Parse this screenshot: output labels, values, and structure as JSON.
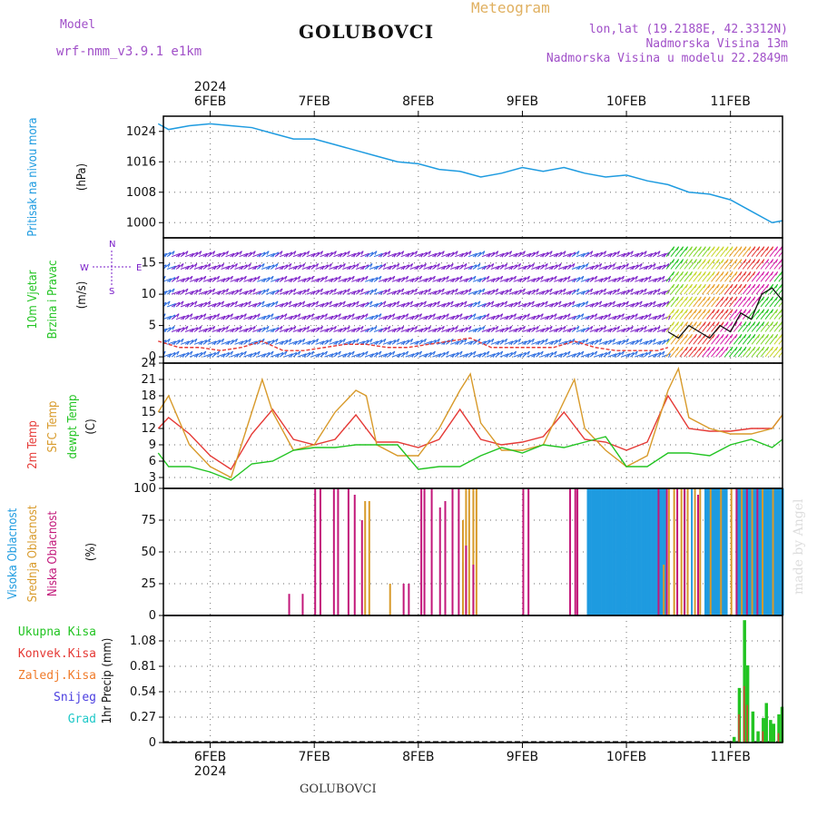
{
  "header": {
    "model_label": "Model",
    "model_name": "wrf-nmm_v3.9.1  e1km",
    "title": "GOLUBOVCI",
    "product": "Meteogram",
    "lonlat": "lon,lat (19.2188E, 42.3312N)",
    "elevation": "Nadmorska Visina 13m",
    "model_elevation": "Nadmorska Visina u modelu 22.2849m",
    "footer": "GOLUBOVCI",
    "watermark": "made by Angel",
    "year_top": "2024",
    "year_bottom": "2024"
  },
  "colors": {
    "pressure": "#1e9be0",
    "temp2m": "#e53935",
    "sfc": "#d89a2a",
    "dewpt": "#22c422",
    "high_cloud": "#1e9be0",
    "mid_cloud": "#d89a2a",
    "low_cloud": "#c2187a",
    "precip_total": "#22c422",
    "precip_conv": "#e53935",
    "precip_frz": "#f07b2a",
    "snow": "#4a3ee0",
    "hail": "#1ec8c8",
    "wind_blue": "#2a6be0",
    "wind_purple": "#7a1ec8",
    "grid": "#888888"
  },
  "chart_data": [
    {
      "type": "line",
      "panel": "pressure",
      "labels": [
        "Pritisak na nivou mora",
        "(hPa)"
      ],
      "x_days": [
        "6FEB",
        "7FEB",
        "8FEB",
        "9FEB",
        "10FEB",
        "11FEB"
      ],
      "y_ticks": [
        "1000",
        "1008",
        "1016",
        "1024"
      ],
      "ylim": [
        996,
        1028
      ],
      "series": [
        {
          "key": "pressure",
          "x": [
            5.5,
            5.6,
            5.8,
            6.0,
            6.2,
            6.4,
            6.6,
            6.8,
            7.0,
            7.2,
            7.4,
            7.6,
            7.8,
            8.0,
            8.2,
            8.4,
            8.6,
            8.8,
            9.0,
            9.2,
            9.4,
            9.6,
            9.8,
            10.0,
            10.2,
            10.4,
            10.6,
            10.8,
            11.0,
            11.2,
            11.4,
            11.5
          ],
          "y": [
            1026,
            1024.5,
            1025.5,
            1026,
            1025.5,
            1025,
            1023.5,
            1022,
            1022,
            1020.5,
            1019,
            1017.5,
            1016,
            1015.5,
            1014,
            1013.5,
            1012,
            1013,
            1014.5,
            1013.5,
            1014.5,
            1013,
            1012,
            1012.5,
            1011,
            1010,
            1008,
            1007.5,
            1006,
            1003,
            1000,
            1000.5
          ]
        }
      ]
    },
    {
      "type": "line",
      "panel": "wind",
      "labels": [
        "10m Vjetar",
        "Brzina i Pravac",
        "(m/s)"
      ],
      "compass": [
        "W",
        "E",
        "N",
        "S"
      ],
      "y_ticks": [
        "0",
        "5",
        "10",
        "15"
      ],
      "ylim": [
        -1,
        19
      ],
      "series": [
        {
          "key": "speed_lower",
          "x": [
            5.5,
            5.7,
            5.9,
            6.1,
            6.3,
            6.5,
            6.7,
            6.9,
            7.1,
            7.3,
            7.5,
            7.7,
            7.9,
            8.1,
            8.3,
            8.5,
            8.7,
            8.9,
            9.1,
            9.3,
            9.5,
            9.7,
            9.9,
            10.1,
            10.3,
            10.4
          ],
          "y": [
            2.5,
            1.5,
            1.5,
            1,
            1.5,
            2.5,
            1,
            1,
            1.5,
            2,
            2,
            1.5,
            1.5,
            2,
            2.5,
            3,
            1.5,
            1.5,
            1.5,
            1.5,
            2.5,
            1.5,
            1,
            1,
            1,
            1.5
          ]
        },
        {
          "key": "speed_upper",
          "x": [
            10.4,
            10.5,
            10.6,
            10.7,
            10.8,
            10.9,
            11.0,
            11.1,
            11.2,
            11.3,
            11.4,
            11.5
          ],
          "y": [
            4,
            3,
            5,
            4,
            3,
            5,
            4,
            7,
            6,
            10,
            11,
            9
          ]
        }
      ]
    },
    {
      "type": "line",
      "panel": "temperature",
      "labels": [
        "2m Temp",
        "SFC Temp",
        "dewpt Temp",
        "(C)"
      ],
      "y_ticks": [
        "3",
        "6",
        "9",
        "12",
        "15",
        "18",
        "21",
        "24"
      ],
      "ylim": [
        1,
        24
      ],
      "series": [
        {
          "key": "temp2m",
          "x": [
            5.5,
            5.6,
            5.8,
            6.0,
            6.2,
            6.4,
            6.6,
            6.8,
            7.0,
            7.2,
            7.4,
            7.6,
            7.8,
            8.0,
            8.2,
            8.4,
            8.6,
            8.8,
            9.0,
            9.2,
            9.4,
            9.6,
            9.8,
            10.0,
            10.2,
            10.4,
            10.6,
            10.8,
            11.0,
            11.2,
            11.4,
            11.5
          ],
          "y": [
            12,
            14,
            11,
            7,
            4.5,
            11,
            15.5,
            10,
            9,
            10,
            14.5,
            9.5,
            9.5,
            8.5,
            10,
            15.5,
            10,
            9,
            9.5,
            10.5,
            15,
            10,
            9.5,
            8,
            9.5,
            18,
            12,
            11.5,
            11.5,
            12,
            12,
            14.5
          ]
        },
        {
          "key": "sfc",
          "x": [
            5.5,
            5.6,
            5.8,
            6.0,
            6.2,
            6.4,
            6.5,
            6.6,
            6.8,
            7.0,
            7.2,
            7.4,
            7.5,
            7.6,
            7.8,
            8.0,
            8.2,
            8.4,
            8.5,
            8.6,
            8.8,
            9.0,
            9.2,
            9.4,
            9.5,
            9.6,
            9.8,
            10.0,
            10.2,
            10.4,
            10.5,
            10.6,
            10.8,
            11.0,
            11.2,
            11.4,
            11.5
          ],
          "y": [
            15,
            18,
            9,
            5,
            3,
            15,
            21,
            15,
            8,
            9,
            15,
            19,
            18,
            9,
            7,
            7,
            12,
            19,
            22,
            13,
            8,
            8,
            9,
            17,
            21,
            12,
            8,
            5,
            7,
            19,
            23,
            14,
            12,
            11,
            11,
            12,
            14.5
          ]
        },
        {
          "key": "dewpt",
          "x": [
            5.5,
            5.6,
            5.8,
            6.0,
            6.2,
            6.4,
            6.6,
            6.8,
            7.0,
            7.2,
            7.4,
            7.6,
            7.8,
            8.0,
            8.2,
            8.4,
            8.6,
            8.8,
            9.0,
            9.2,
            9.4,
            9.6,
            9.8,
            10.0,
            10.2,
            10.4,
            10.6,
            10.8,
            11.0,
            11.2,
            11.4,
            11.5
          ],
          "y": [
            7.5,
            5,
            5,
            4,
            2.5,
            5.5,
            6,
            8,
            8.5,
            8.5,
            9,
            9,
            9,
            4.5,
            5,
            5,
            7,
            8.5,
            7.5,
            9,
            8.5,
            9.5,
            10.5,
            5,
            5,
            7.5,
            7.5,
            7,
            9,
            10,
            8.5,
            10
          ]
        }
      ]
    },
    {
      "type": "bar",
      "panel": "clouds",
      "labels": [
        "Visoka Oblacnost",
        "Srednja Oblacnost",
        "Niska Oblacnost",
        "(%)"
      ],
      "y_ticks": [
        "0",
        "25",
        "50",
        "75",
        "100"
      ],
      "ylim": [
        0,
        100
      ],
      "series": [
        {
          "key": "high_cloud",
          "blocks": [
            [
              9.62,
              10.36,
              100
            ],
            [
              10.75,
              10.95,
              100
            ],
            [
              11.05,
              11.5,
              100
            ]
          ],
          "bars": [
            [
              8.42,
              42
            ],
            [
              10.55,
              100
            ],
            [
              10.62,
              100
            ]
          ]
        },
        {
          "key": "mid_cloud",
          "bars": [
            [
              7.48,
              90
            ],
            [
              7.52,
              90
            ],
            [
              7.72,
              25
            ],
            [
              8.42,
              75
            ],
            [
              8.45,
              100
            ],
            [
              8.48,
              100
            ],
            [
              8.52,
              100
            ],
            [
              8.55,
              100
            ],
            [
              10.4,
              100
            ],
            [
              10.45,
              100
            ],
            [
              10.52,
              100
            ],
            [
              10.58,
              100
            ],
            [
              10.65,
              100
            ],
            [
              10.7,
              100
            ],
            [
              10.8,
              100
            ],
            [
              10.9,
              100
            ],
            [
              11.0,
              100
            ],
            [
              11.1,
              100
            ],
            [
              11.2,
              100
            ],
            [
              11.3,
              100
            ],
            [
              11.4,
              100
            ],
            [
              10.35,
              40
            ]
          ]
        },
        {
          "key": "low_cloud",
          "bars": [
            [
              6.75,
              17
            ],
            [
              6.88,
              17
            ],
            [
              7.0,
              100
            ],
            [
              7.05,
              100
            ],
            [
              7.18,
              100
            ],
            [
              7.22,
              100
            ],
            [
              7.32,
              100
            ],
            [
              7.38,
              95
            ],
            [
              7.45,
              75
            ],
            [
              7.85,
              25
            ],
            [
              7.9,
              25
            ],
            [
              8.02,
              100
            ],
            [
              8.05,
              100
            ],
            [
              8.12,
              100
            ],
            [
              8.2,
              85
            ],
            [
              8.25,
              90
            ],
            [
              8.32,
              100
            ],
            [
              8.38,
              100
            ],
            [
              8.45,
              55
            ],
            [
              8.52,
              40
            ],
            [
              9.0,
              100
            ],
            [
              9.05,
              100
            ],
            [
              9.45,
              100
            ],
            [
              9.5,
              100
            ],
            [
              9.52,
              100
            ],
            [
              10.3,
              100
            ],
            [
              10.38,
              100
            ],
            [
              10.48,
              100
            ],
            [
              10.55,
              100
            ],
            [
              10.68,
              95
            ],
            [
              11.05,
              100
            ],
            [
              11.15,
              100
            ],
            [
              11.25,
              100
            ]
          ]
        }
      ]
    },
    {
      "type": "bar",
      "panel": "precip",
      "legend": [
        "Ukupna Kisa",
        "Konvek.Kisa",
        "Zaledj.Kisa",
        "Snijeg",
        "Grad"
      ],
      "labels": [
        "1hr Precip (mm)"
      ],
      "y_ticks": [
        "0",
        "0.27",
        "0.54",
        "0.81",
        "1.08"
      ],
      "ylim": [
        0,
        1.35
      ],
      "series": [
        {
          "key": "precip_total",
          "x": [
            11.02,
            11.07,
            11.12,
            11.15,
            11.2,
            11.25,
            11.3,
            11.33,
            11.37,
            11.4,
            11.45,
            11.48
          ],
          "y": [
            0.06,
            0.58,
            1.3,
            0.82,
            0.33,
            0.12,
            0.26,
            0.42,
            0.24,
            0.2,
            0.3,
            0.38
          ]
        },
        {
          "key": "precip_conv",
          "x": [
            11.07,
            11.12,
            11.15,
            11.3,
            11.45
          ],
          "y": [
            0.3,
            0.6,
            0.4,
            0.12,
            0.1
          ]
        }
      ]
    }
  ]
}
